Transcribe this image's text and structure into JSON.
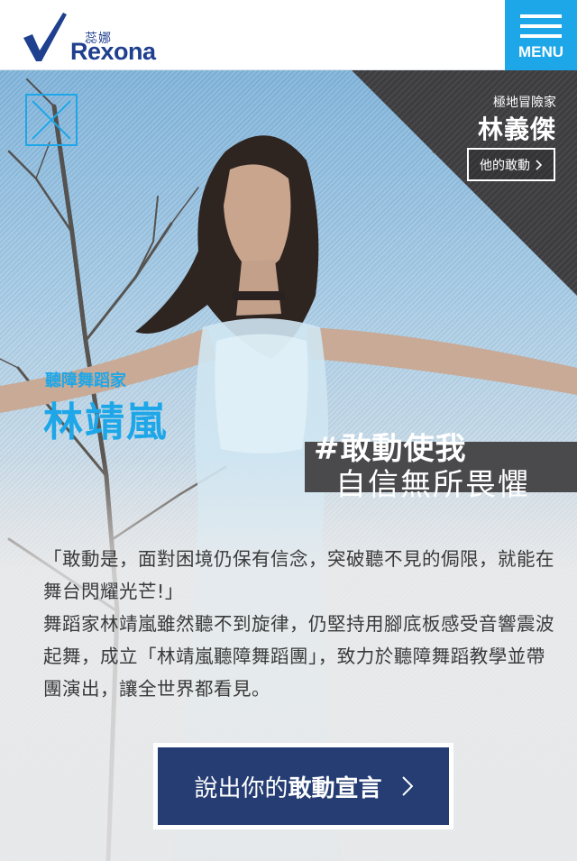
{
  "header": {
    "logo_cn": "蕊娜",
    "logo_en": "Rexona",
    "menu_label": "MENU"
  },
  "side_profile": {
    "subtitle": "極地冒險家",
    "name": "林義傑",
    "button_label": "他的敢動"
  },
  "profile": {
    "title": "聽障舞蹈家",
    "name": "林靖嵐"
  },
  "slogan": {
    "tag": "#敢動使我",
    "line2": "自信無所畏懼"
  },
  "quote": {
    "line1": "「敢動是，面對困境仍保有信念，突破聽不見的侷限，就能在舞台閃耀光芒!」",
    "body": "舞蹈家林靖嵐雖然聽不到旋律，仍堅持用腳底板感受音響震波起舞，成立「林靖嵐聽障舞蹈團」，致力於聽障舞蹈教學並帶團演出，讓全世界都看見。"
  },
  "cta": {
    "label_plain": "說出你的",
    "label_bold": "敢動宣言"
  },
  "colors": {
    "brand_blue": "#1f3f8f",
    "accent_cyan": "#1ea7e8",
    "cta_navy": "#253d73",
    "dark_panel": "#3d3d40"
  },
  "icons": [
    "rexona-check-icon",
    "hamburger-icon",
    "close-icon",
    "chevron-right-icon"
  ]
}
